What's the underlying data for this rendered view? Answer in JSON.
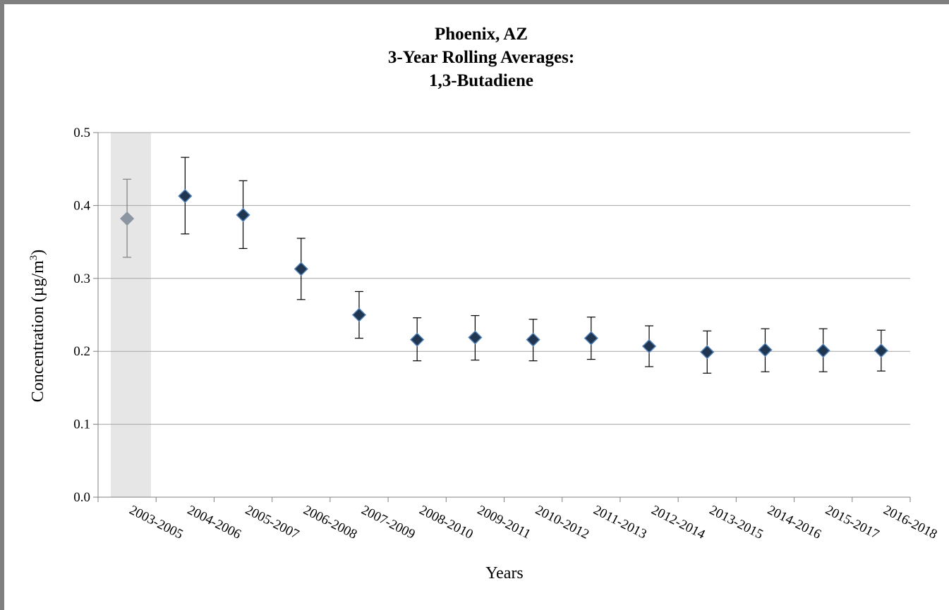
{
  "chart_data": {
    "type": "scatter",
    "title_lines": [
      "Phoenix, AZ",
      "3-Year Rolling Averages:",
      "1,3-Butadiene"
    ],
    "xlabel": "Years",
    "ylabel_main": "Concentration (µg/m",
    "ylabel_sup": "3",
    "ylabel_close": ")",
    "ylim": [
      0,
      0.5
    ],
    "yticks": [
      "0.0",
      "0.1",
      "0.2",
      "0.3",
      "0.4",
      "0.5"
    ],
    "grid": true,
    "legend": "none",
    "categories": [
      "2003-2005",
      "2004-2006",
      "2005-2007",
      "2006-2008",
      "2007-2009",
      "2008-2010",
      "2009-2011",
      "2010-2012",
      "2011-2013",
      "2012-2014",
      "2013-2015",
      "2014-2016",
      "2015-2017",
      "2016-2018"
    ],
    "series": [
      {
        "values": [
          0.382,
          0.413,
          0.387,
          0.313,
          0.25,
          0.216,
          0.219,
          0.216,
          0.218,
          0.207,
          0.199,
          0.202,
          0.201,
          0.201
        ],
        "error_low": [
          0.329,
          0.361,
          0.341,
          0.271,
          0.218,
          0.187,
          0.188,
          0.187,
          0.189,
          0.179,
          0.17,
          0.172,
          0.172,
          0.173
        ],
        "error_high": [
          0.436,
          0.466,
          0.434,
          0.355,
          0.282,
          0.246,
          0.249,
          0.244,
          0.247,
          0.235,
          0.228,
          0.231,
          0.231,
          0.229
        ]
      }
    ],
    "shaded_categories": [
      0
    ],
    "colors": {
      "marker": "#1f3550",
      "marker_edge": "#4f7fb5",
      "marker_shaded": "#8c96a2",
      "errorbar": "#000000",
      "errorbar_shaded": "#7f7f7f",
      "shade": "#e6e6e6",
      "grid": "#a6a6a6",
      "axis": "#808080"
    }
  }
}
